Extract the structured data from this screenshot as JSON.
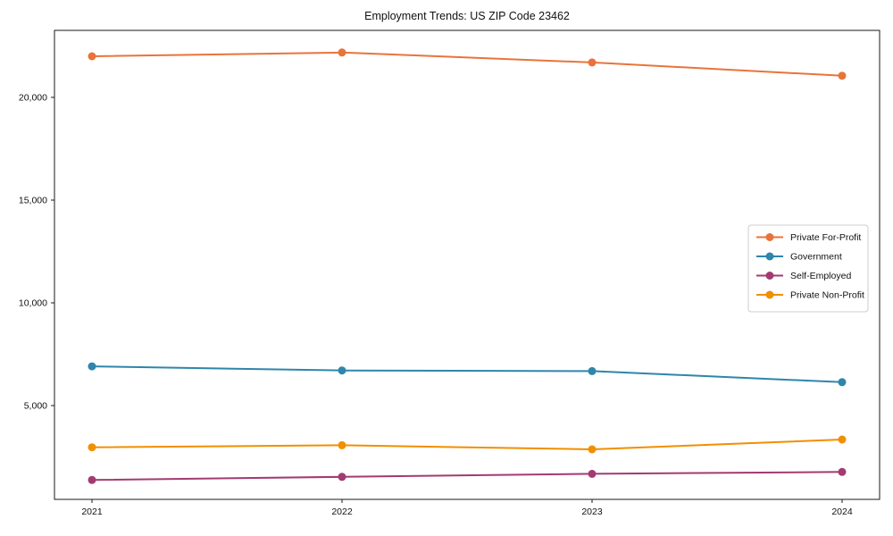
{
  "window": {
    "title": "Employment Trends: US ZIP Code 23462"
  },
  "chart_data": {
    "type": "line",
    "title": "Employment Trends: US ZIP Code 23462",
    "xlabel": "",
    "ylabel": "",
    "categories": [
      "2021",
      "2022",
      "2023",
      "2024"
    ],
    "x": [
      2021,
      2022,
      2023,
      2024
    ],
    "series": [
      {
        "name": "Private For-Profit",
        "color": "#E8743B",
        "values": [
          22000,
          22180,
          21700,
          21050
        ]
      },
      {
        "name": "Government",
        "color": "#2E86AB",
        "values": [
          6910,
          6710,
          6680,
          6140
        ]
      },
      {
        "name": "Self-Employed",
        "color": "#A23B72",
        "values": [
          1380,
          1530,
          1680,
          1770
        ]
      },
      {
        "name": "Private Non-Profit",
        "color": "#F18F01",
        "values": [
          2970,
          3070,
          2870,
          3350
        ]
      }
    ],
    "yticks": [
      5000,
      10000,
      15000,
      20000
    ],
    "xlim": [
      2020.85,
      2024.15
    ],
    "ylim": [
      435,
      23260
    ],
    "grid": false,
    "marker": "circle",
    "legend_position": "right-center",
    "frame_color": "#1a1a1a",
    "legend_border_color": "#cccccc"
  }
}
